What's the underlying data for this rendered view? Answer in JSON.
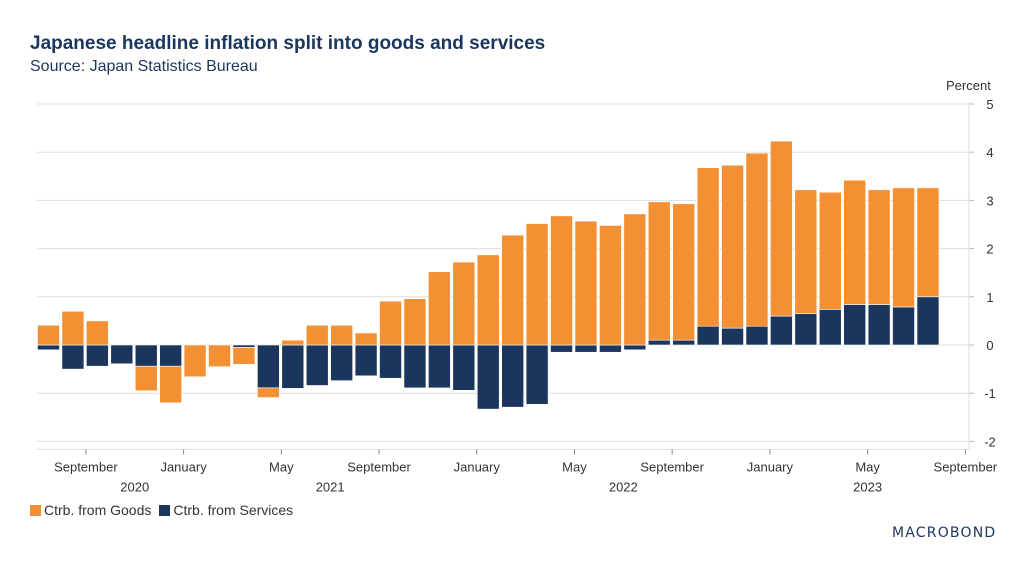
{
  "title": "Japanese headline inflation split into goods and services",
  "subtitle": "Source: Japan Statistics Bureau",
  "unit_label": "Percent",
  "logo": "MACROBOND",
  "colors": {
    "goods": "#F39033",
    "services": "#1B365D",
    "grid": "#dddddd",
    "text": "#333333"
  },
  "legend": [
    {
      "label": "Ctrb. from Goods",
      "color": "#F39033"
    },
    {
      "label": "Ctrb. from Services",
      "color": "#1B365D"
    }
  ],
  "chart_data": {
    "type": "bar",
    "stacked": true,
    "title": "Japanese headline inflation split into goods and services",
    "subtitle": "Source: Japan Statistics Bureau",
    "xlabel": "",
    "ylabel": "Percent",
    "ylim": [
      -2,
      5
    ],
    "yticks": [
      5,
      4,
      3,
      2,
      1,
      0,
      -1,
      -2
    ],
    "y_axis_side": "right",
    "grid": true,
    "legend_position": "bottom-left",
    "categories": [
      "2020-07",
      "2020-08",
      "2020-09",
      "2020-10",
      "2020-11",
      "2020-12",
      "2021-01",
      "2021-02",
      "2021-03",
      "2021-04",
      "2021-05",
      "2021-06",
      "2021-07",
      "2021-08",
      "2021-09",
      "2021-10",
      "2021-11",
      "2021-12",
      "2022-01",
      "2022-02",
      "2022-03",
      "2022-04",
      "2022-05",
      "2022-06",
      "2022-07",
      "2022-08",
      "2022-09",
      "2022-10",
      "2022-11",
      "2022-12",
      "2023-01",
      "2023-02",
      "2023-03",
      "2023-04",
      "2023-05",
      "2023-06",
      "2023-07"
    ],
    "x_ticks": [
      {
        "label": "September",
        "year": "2020",
        "index": 2
      },
      {
        "label": "January",
        "year": "",
        "index": 6
      },
      {
        "label": "May",
        "year": "2021",
        "index": 10
      },
      {
        "label": "September",
        "year": "",
        "index": 14
      },
      {
        "label": "January",
        "year": "",
        "index": 18
      },
      {
        "label": "May",
        "year": "",
        "index": 22
      },
      {
        "label": "September",
        "year": "2022",
        "index": 26
      },
      {
        "label": "January",
        "year": "",
        "index": 30
      },
      {
        "label": "May",
        "year": "2023",
        "index": 34
      },
      {
        "label": "September",
        "year": "",
        "index": 38
      }
    ],
    "year_labels": [
      {
        "label": "2020",
        "index": 3.5
      },
      {
        "label": "2021",
        "index": 11.5
      },
      {
        "label": "2022",
        "index": 23.5
      },
      {
        "label": "2023",
        "index": 33.5
      }
    ],
    "series": [
      {
        "name": "Ctrb. from Goods",
        "values": [
          0.41,
          0.7,
          0.5,
          0.0,
          -0.51,
          -0.76,
          -0.66,
          -0.45,
          -0.35,
          -0.2,
          0.1,
          0.41,
          0.41,
          0.25,
          0.91,
          0.96,
          1.52,
          1.72,
          1.87,
          2.28,
          2.52,
          2.68,
          2.57,
          2.48,
          2.72,
          2.87,
          2.83,
          3.29,
          3.38,
          3.59,
          3.63,
          2.57,
          2.43,
          2.58,
          2.38,
          2.47,
          2.26
        ]
      },
      {
        "name": "Ctrb. from Services",
        "values": [
          -0.1,
          -0.5,
          -0.44,
          -0.39,
          -0.44,
          -0.44,
          0.0,
          0.0,
          -0.05,
          -0.89,
          -0.9,
          -0.84,
          -0.74,
          -0.64,
          -0.69,
          -0.89,
          -0.89,
          -0.94,
          -1.33,
          -1.29,
          -1.23,
          -0.15,
          -0.15,
          -0.15,
          -0.1,
          0.1,
          0.1,
          0.39,
          0.35,
          0.39,
          0.6,
          0.65,
          0.74,
          0.84,
          0.84,
          0.79,
          1.0
        ]
      }
    ]
  }
}
